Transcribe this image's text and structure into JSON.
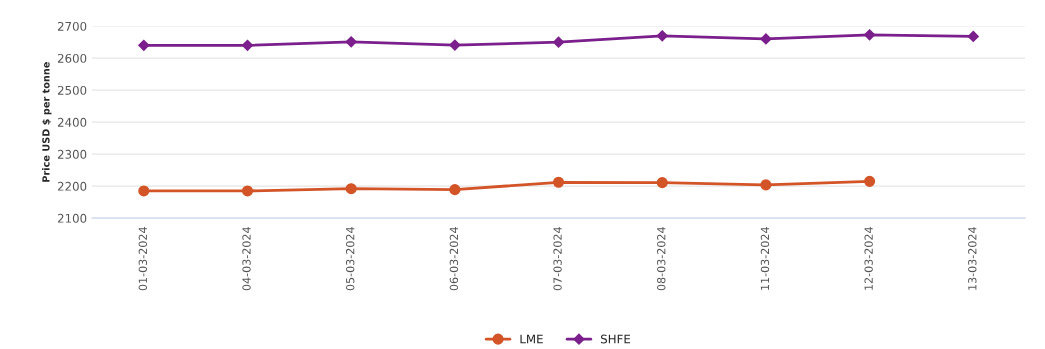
{
  "chart_data": {
    "type": "line",
    "ylabel": "Price USD $ per tonne",
    "categories": [
      "01-03-2024",
      "04-03-2024",
      "05-03-2024",
      "06-03-2024",
      "07-03-2024",
      "08-03-2024",
      "11-03-2024",
      "12-03-2024",
      "13-03-2024"
    ],
    "series": [
      {
        "name": "LME",
        "color": "#d35427",
        "marker": "circle",
        "values": [
          2185,
          2185,
          2192,
          2189,
          2212,
          2211,
          2204,
          2215,
          null
        ]
      },
      {
        "name": "SHFE",
        "color": "#7b1f8c",
        "marker": "diamond",
        "values": [
          2640,
          2640,
          2651,
          2641,
          2650,
          2670,
          2660,
          2673,
          2668
        ]
      }
    ],
    "ylim": [
      2100,
      2700
    ],
    "yticks": [
      2100,
      2200,
      2300,
      2400,
      2500,
      2600,
      2700
    ],
    "grid": "y",
    "legend": "bottom"
  }
}
